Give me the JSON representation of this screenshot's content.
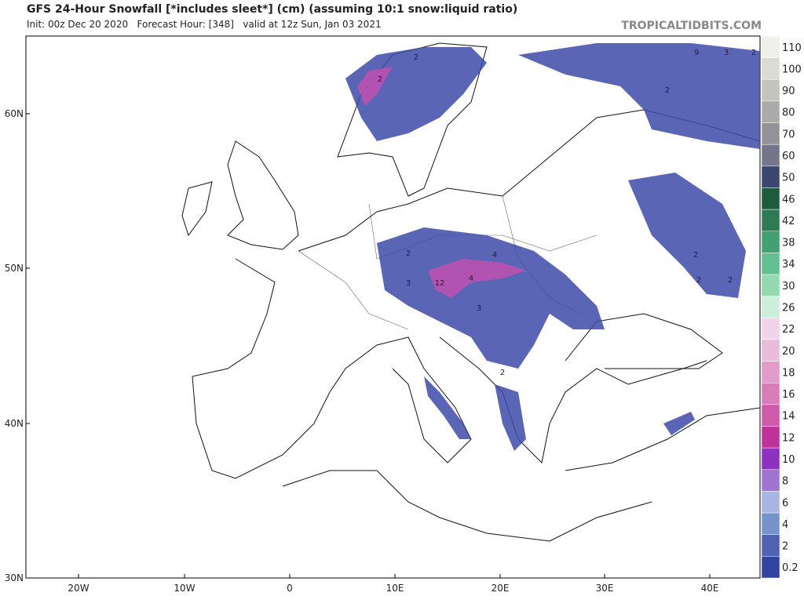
{
  "header": {
    "title": "GFS 24-Hour Snowfall [*includes sleet*] (cm) (assuming 10:1 snow:liquid ratio)",
    "subtitle": "Init: 00z Dec 20 2020   Forecast Hour: [348]   valid at 12z Sun, Jan 03 2021",
    "source": "TROPICALTIDBITS.COM"
  },
  "map": {
    "lat_labels": [
      "60N",
      "50N",
      "40N",
      "30N"
    ],
    "lon_labels": [
      "20W",
      "10W",
      "0",
      "10E",
      "20E",
      "30E",
      "40E"
    ],
    "contour_labels": [
      "2",
      "2",
      "9",
      "3",
      "2",
      "2",
      "4",
      "2",
      "3",
      "12",
      "4",
      "2",
      "2",
      "2",
      "2",
      "3"
    ]
  },
  "legend": {
    "levels": [
      {
        "label": "110",
        "color": "#f0f0ea"
      },
      {
        "label": "100",
        "color": "#dcdcd4"
      },
      {
        "label": "90",
        "color": "#c4c4bc"
      },
      {
        "label": "80",
        "color": "#aaaaa8"
      },
      {
        "label": "70",
        "color": "#929298"
      },
      {
        "label": "60",
        "color": "#74748a"
      },
      {
        "label": "50",
        "color": "#3c4670"
      },
      {
        "label": "46",
        "color": "#1e5a3c"
      },
      {
        "label": "42",
        "color": "#2e7a52"
      },
      {
        "label": "38",
        "color": "#42a072"
      },
      {
        "label": "34",
        "color": "#64c093"
      },
      {
        "label": "30",
        "color": "#94d8b2"
      },
      {
        "label": "26",
        "color": "#cdeedb"
      },
      {
        "label": "22",
        "color": "#f2d4ea"
      },
      {
        "label": "20",
        "color": "#e9bcdb"
      },
      {
        "label": "18",
        "color": "#e19cca"
      },
      {
        "label": "16",
        "color": "#d87cba"
      },
      {
        "label": "14",
        "color": "#cf5aaa"
      },
      {
        "label": "12",
        "color": "#bf329a"
      },
      {
        "label": "10",
        "color": "#8e30c0"
      },
      {
        "label": "8",
        "color": "#a274d2"
      },
      {
        "label": "6",
        "color": "#a8b4e2"
      },
      {
        "label": "4",
        "color": "#7494cb"
      },
      {
        "label": "2",
        "color": "#5262b2"
      },
      {
        "label": "0.2",
        "color": "#3242a0"
      }
    ]
  }
}
